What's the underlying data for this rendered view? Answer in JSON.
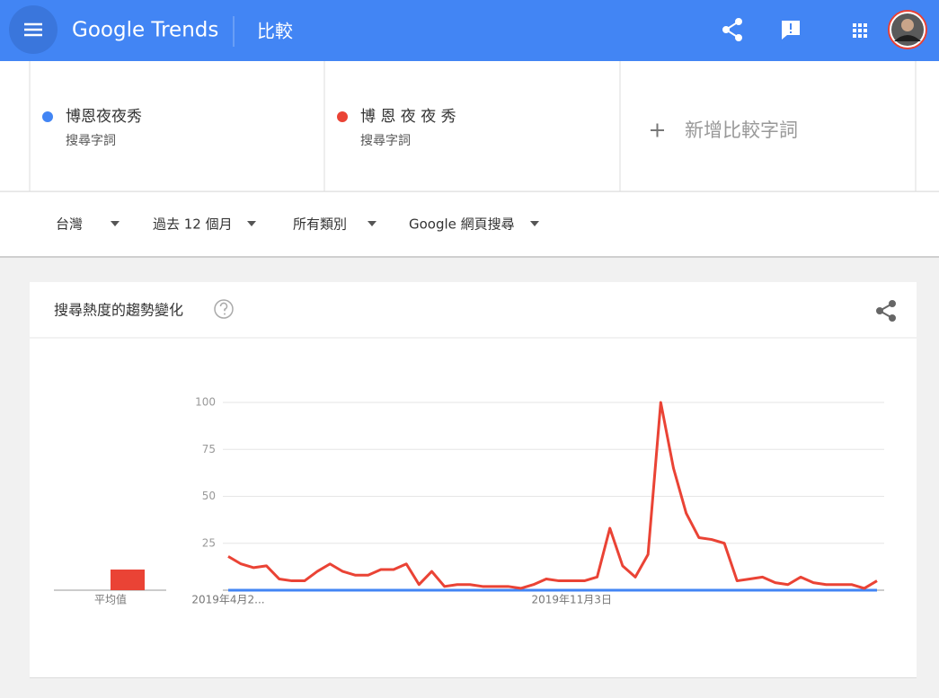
{
  "header": {
    "logo": "Google Trends",
    "page": "比較"
  },
  "term_types": [
    "搜尋字詞",
    "搜尋字詞"
  ],
  "add_term": "新增比較字詞",
  "filters": [
    "台灣",
    "過去 12 個月",
    "所有類別",
    "Google 網頁搜尋"
  ],
  "chart_data": {
    "type": "line",
    "title": "搜尋熱度的趨勢變化",
    "categories": [
      "2019年4月2...",
      null,
      null,
      null,
      null,
      null,
      null,
      null,
      null,
      null,
      null,
      null,
      null,
      null,
      null,
      null,
      null,
      null,
      null,
      null,
      null,
      null,
      null,
      null,
      null,
      null,
      null,
      "2019年11月3日",
      null,
      null,
      null,
      null,
      null,
      null,
      null,
      null,
      null,
      null,
      null,
      null,
      null,
      null,
      null,
      null,
      null,
      null,
      null,
      null,
      null,
      null,
      null,
      null
    ],
    "series": [
      {
        "name": "博恩夜夜秀",
        "color": "#4285f4",
        "values": [
          0,
          0,
          0,
          0,
          0,
          0,
          0,
          0,
          0,
          0,
          0,
          0,
          0,
          0,
          0,
          0,
          0,
          0,
          0,
          0,
          0,
          0,
          0,
          0,
          0,
          0,
          0,
          0,
          0,
          0,
          0,
          0,
          0,
          0,
          0,
          0,
          0,
          0,
          0,
          0,
          0,
          0,
          0,
          0,
          0,
          0,
          0,
          0,
          0,
          0,
          0,
          0
        ]
      },
      {
        "name": "博 恩 夜 夜 秀",
        "color": "#ea4335",
        "values": [
          18,
          14,
          12,
          13,
          6,
          5,
          5,
          10,
          14,
          10,
          8,
          8,
          11,
          11,
          14,
          3,
          10,
          2,
          3,
          3,
          2,
          2,
          2,
          1,
          3,
          6,
          5,
          5,
          5,
          7,
          33,
          13,
          7,
          19,
          100,
          65,
          41,
          28,
          27,
          25,
          5,
          6,
          7,
          4,
          3,
          7,
          4,
          3,
          3,
          3,
          1,
          5
        ]
      }
    ],
    "ylim": [
      0,
      100
    ],
    "yticks": [
      25,
      50,
      75,
      100
    ],
    "grid": true,
    "average_label": "平均值",
    "averages": [
      0,
      11
    ]
  }
}
